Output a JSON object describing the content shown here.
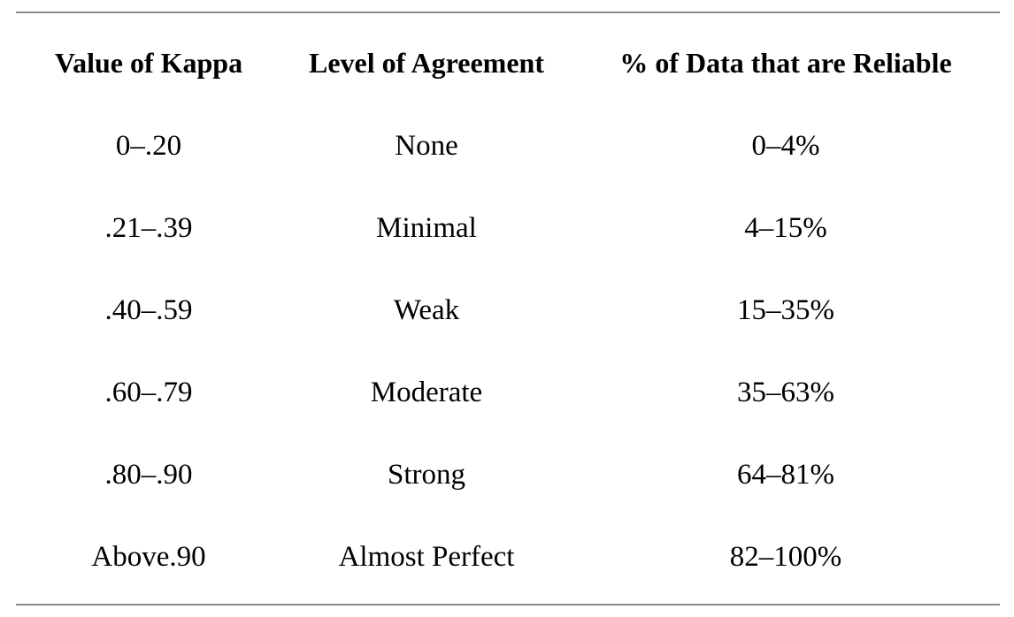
{
  "table": {
    "headers": [
      "Value of Kappa",
      "Level of Agreement",
      "% of Data that are Reliable"
    ],
    "rows": [
      [
        "0–.20",
        "None",
        "0–4%"
      ],
      [
        ".21–.39",
        "Minimal",
        "4–15%"
      ],
      [
        ".40–.59",
        "Weak",
        "15–35%"
      ],
      [
        ".60–.79",
        "Moderate",
        "35–63%"
      ],
      [
        ".80–.90",
        "Strong",
        "64–81%"
      ],
      [
        "Above.90",
        "Almost Perfect",
        "82–100%"
      ]
    ]
  },
  "colors": {
    "rule": "#8a8a8a",
    "text": "#000000",
    "background": "#ffffff"
  }
}
